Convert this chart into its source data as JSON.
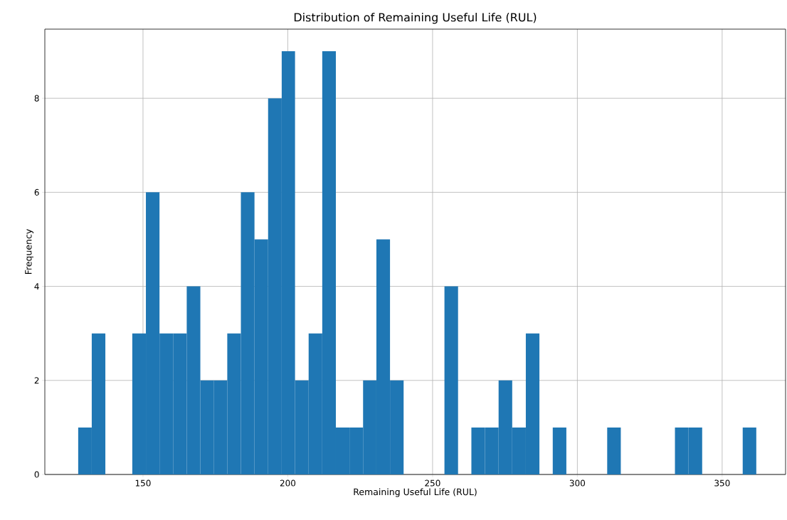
{
  "chart_data": {
    "type": "histogram",
    "title": "Distribution of Remaining Useful Life (RUL)",
    "xlabel": "Remaining Useful Life (RUL)",
    "ylabel": "Frequency",
    "bins": [
      127.6,
      132.3,
      137.0,
      141.7,
      146.3,
      151.0,
      155.7,
      160.4,
      165.1,
      169.8,
      174.4,
      179.1,
      183.8,
      188.5,
      193.2,
      197.9,
      202.5,
      207.2,
      211.9,
      216.6,
      221.3,
      226.0,
      230.6,
      235.3,
      240.0,
      244.7,
      249.4,
      254.1,
      258.8,
      263.4,
      268.1,
      272.8,
      277.5,
      282.2,
      286.9,
      291.5,
      296.2,
      300.9,
      305.6,
      310.3,
      315.0,
      319.6,
      324.3,
      329.0,
      333.7,
      338.4,
      343.1,
      347.7,
      352.4,
      357.1,
      361.8
    ],
    "values": [
      1,
      3,
      0,
      0,
      3,
      6,
      3,
      3,
      4,
      2,
      2,
      3,
      6,
      5,
      8,
      9,
      2,
      3,
      9,
      1,
      1,
      2,
      5,
      2,
      0,
      0,
      0,
      4,
      0,
      1,
      1,
      2,
      1,
      3,
      0,
      1,
      0,
      0,
      0,
      1,
      0,
      0,
      0,
      0,
      1,
      1,
      0,
      0,
      0,
      1
    ],
    "color": "#1f77b4",
    "xlim": [
      116.1,
      371.9
    ],
    "ylim": [
      0,
      9.47
    ],
    "xticks": [
      150,
      200,
      250,
      300,
      350
    ],
    "yticks": [
      0,
      2,
      4,
      6,
      8
    ],
    "grid": true
  }
}
